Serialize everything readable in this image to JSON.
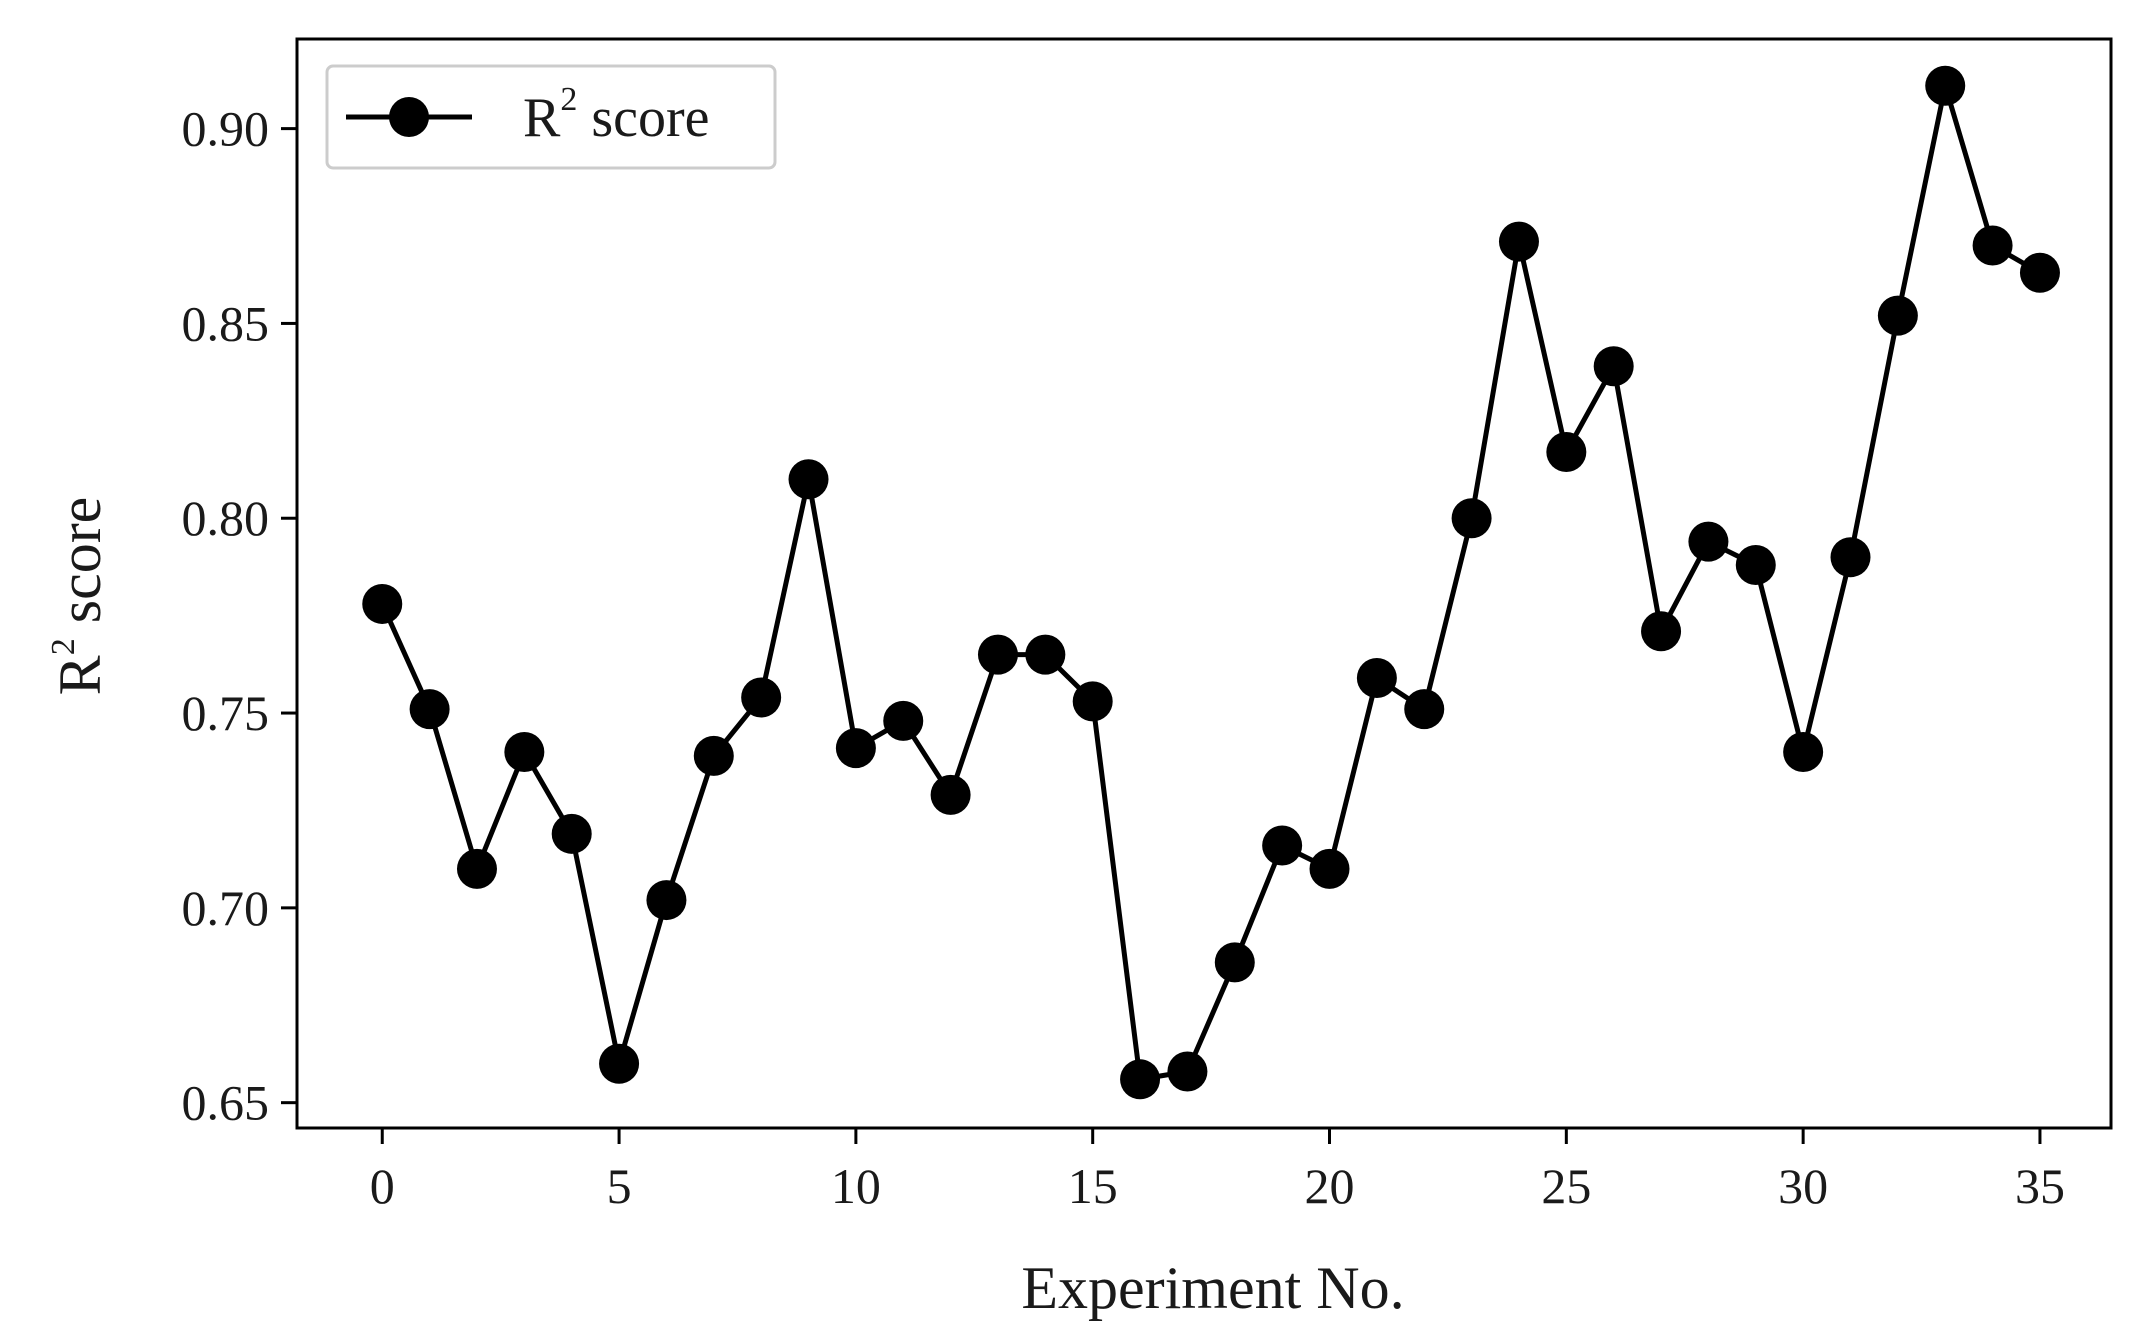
{
  "chart_data": {
    "type": "line",
    "title": "",
    "xlabel": "Experiment No.",
    "ylabel_main": "R",
    "ylabel_sup": "2",
    "ylabel_rest": " score",
    "x": [
      0,
      1,
      2,
      3,
      4,
      5,
      6,
      7,
      8,
      9,
      10,
      11,
      12,
      13,
      14,
      15,
      16,
      17,
      18,
      19,
      20,
      21,
      22,
      23,
      24,
      25,
      26,
      27,
      28,
      29,
      30,
      31,
      32,
      33,
      34,
      35
    ],
    "series": [
      {
        "name_main": "R",
        "name_sup": "2",
        "name_rest": " score",
        "color": "#000000",
        "marker": "circle",
        "values": [
          0.778,
          0.751,
          0.71,
          0.74,
          0.719,
          0.66,
          0.702,
          0.739,
          0.754,
          0.81,
          0.741,
          0.748,
          0.729,
          0.765,
          0.765,
          0.753,
          0.656,
          0.658,
          0.686,
          0.716,
          0.71,
          0.759,
          0.751,
          0.8,
          0.871,
          0.817,
          0.839,
          0.771,
          0.794,
          0.788,
          0.74,
          0.79,
          0.852,
          0.911,
          0.87,
          0.863
        ]
      }
    ],
    "xlim": [
      -1.8,
      36.5
    ],
    "ylim": [
      0.6435,
      0.923
    ],
    "xticks": [
      0,
      5,
      10,
      15,
      20,
      25,
      30,
      35
    ],
    "xtick_labels": [
      "0",
      "5",
      "10",
      "15",
      "20",
      "25",
      "30",
      "35"
    ],
    "yticks": [
      0.65,
      0.7,
      0.75,
      0.8,
      0.85,
      0.9
    ],
    "ytick_labels": [
      "0.65",
      "0.70",
      "0.75",
      "0.80",
      "0.85",
      "0.90"
    ],
    "grid": false,
    "legend_position": "top-left"
  }
}
